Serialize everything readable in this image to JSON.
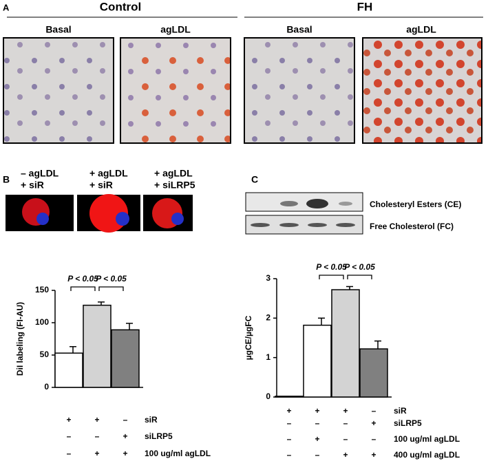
{
  "panel_a": {
    "label": "A",
    "groups": [
      {
        "title": "Control",
        "images": [
          "Basal",
          "agLDL"
        ]
      },
      {
        "title": "FH",
        "images": [
          "Basal",
          "agLDL"
        ]
      }
    ]
  },
  "panel_b": {
    "label": "B",
    "images": [
      [
        "– agLDL",
        "+ siR"
      ],
      [
        "+ agLDL",
        "+ siR"
      ],
      [
        "+ agLDL",
        "+ siLRP5"
      ]
    ]
  },
  "panel_c": {
    "label": "C",
    "blots": [
      "Cholesteryl Esters (CE)",
      "Free Cholesterol  (FC)"
    ]
  },
  "chart_data": [
    {
      "type": "bar",
      "ylabel": "DiI labeling (FI-AU)",
      "ylim": [
        0,
        150
      ],
      "yticks": [
        0,
        50,
        100,
        150
      ],
      "series": [
        {
          "values": [
            53,
            127,
            89
          ],
          "errors": [
            10,
            5,
            10
          ],
          "colors": [
            "#ffffff",
            "#d3d3d3",
            "#808080"
          ]
        }
      ],
      "significance": [
        {
          "from": 0,
          "to": 1,
          "label": "P < 0.05"
        },
        {
          "from": 1,
          "to": 2,
          "label": "P < 0.05"
        }
      ],
      "conditions": [
        {
          "name": "siR",
          "marks": [
            "+",
            "+",
            "–"
          ]
        },
        {
          "name": "siLRP5",
          "marks": [
            "–",
            "–",
            "+"
          ]
        },
        {
          "name": "100 ug/ml agLDL",
          "marks": [
            "–",
            "+",
            "+"
          ]
        }
      ]
    },
    {
      "type": "bar",
      "ylabel": "µgCE/µgFC",
      "ylim": [
        0,
        3
      ],
      "yticks": [
        0,
        1,
        2,
        3
      ],
      "series": [
        {
          "values": [
            0.02,
            1.82,
            2.72,
            1.22
          ],
          "errors": [
            0,
            0.18,
            0.08,
            0.2
          ],
          "colors": [
            "#ffffff",
            "#ffffff",
            "#d3d3d3",
            "#808080"
          ]
        }
      ],
      "significance": [
        {
          "from": 1,
          "to": 2,
          "label": "P < 0.05"
        },
        {
          "from": 2,
          "to": 3,
          "label": "P < 0.05"
        }
      ],
      "conditions": [
        {
          "name": "siR",
          "marks": [
            "+",
            "+",
            "+",
            "–"
          ]
        },
        {
          "name": "siLRP5",
          "marks": [
            "–",
            "–",
            "–",
            "+"
          ]
        },
        {
          "name": "100 ug/ml agLDL",
          "marks": [
            "–",
            "+",
            "–",
            "–"
          ]
        },
        {
          "name": "400 ug/ml agLDL",
          "marks": [
            "–",
            "–",
            "+",
            "+"
          ]
        }
      ]
    }
  ]
}
